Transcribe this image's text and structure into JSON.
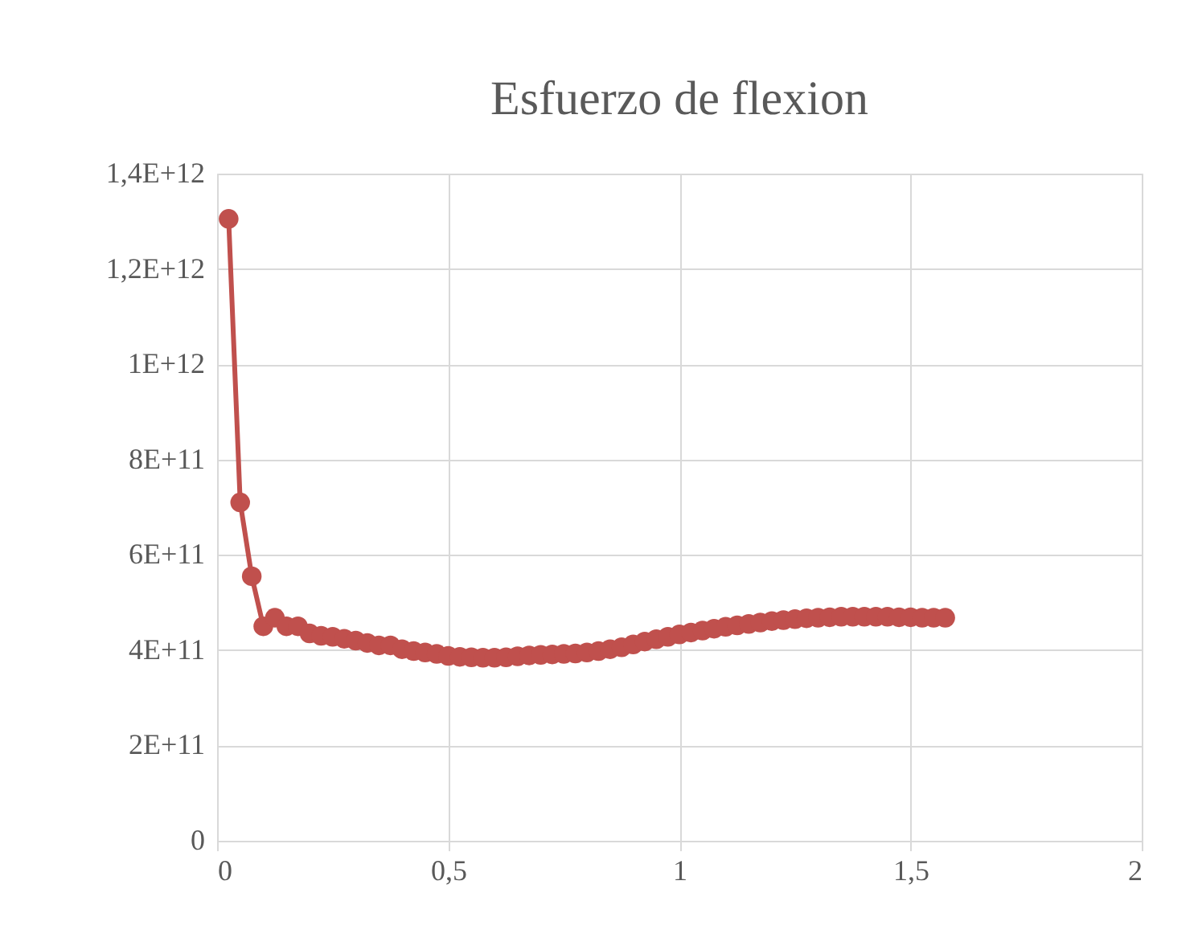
{
  "chart_data": {
    "type": "line",
    "title": "Esfuerzo de flexion",
    "x": [
      0.025,
      0.05,
      0.075,
      0.1,
      0.125,
      0.15,
      0.175,
      0.2,
      0.225,
      0.25,
      0.275,
      0.3,
      0.325,
      0.35,
      0.375,
      0.4,
      0.425,
      0.45,
      0.475,
      0.5,
      0.525,
      0.55,
      0.575,
      0.6,
      0.625,
      0.65,
      0.675,
      0.7,
      0.725,
      0.75,
      0.775,
      0.8,
      0.825,
      0.85,
      0.875,
      0.9,
      0.925,
      0.95,
      0.975,
      1.0,
      1.025,
      1.05,
      1.075,
      1.1,
      1.125,
      1.15,
      1.175,
      1.2,
      1.225,
      1.25,
      1.275,
      1.3,
      1.325,
      1.35,
      1.375,
      1.4,
      1.425,
      1.45,
      1.475,
      1.5,
      1.525,
      1.55,
      1.575
    ],
    "series": [
      {
        "color": "#c0504d",
        "values": [
          1305000000000.0,
          710000000000.0,
          555000000000.0,
          450000000000.0,
          468000000000.0,
          450000000000.0,
          450000000000.0,
          435000000000.0,
          430000000000.0,
          428000000000.0,
          424000000000.0,
          420000000000.0,
          415000000000.0,
          410000000000.0,
          410000000000.0,
          402000000000.0,
          398000000000.0,
          395000000000.0,
          392000000000.0,
          388000000000.0,
          386000000000.0,
          385000000000.0,
          384000000000.0,
          384000000000.0,
          385000000000.0,
          387000000000.0,
          389000000000.0,
          390000000000.0,
          391000000000.0,
          392000000000.0,
          393000000000.0,
          395000000000.0,
          398000000000.0,
          402000000000.0,
          406000000000.0,
          412000000000.0,
          418000000000.0,
          423000000000.0,
          428000000000.0,
          433000000000.0,
          437000000000.0,
          441000000000.0,
          445000000000.0,
          449000000000.0,
          452000000000.0,
          455000000000.0,
          458000000000.0,
          461000000000.0,
          463000000000.0,
          465000000000.0,
          467000000000.0,
          468000000000.0,
          469000000000.0,
          470000000000.0,
          470000000000.0,
          470000000000.0,
          470000000000.0,
          470000000000.0,
          469000000000.0,
          469000000000.0,
          468000000000.0,
          468000000000.0,
          468000000000.0
        ]
      }
    ],
    "xlim": [
      0,
      2
    ],
    "xticks": [
      0,
      {
        "value": 0.5,
        "label": "0,5"
      },
      1,
      {
        "value": 1.5,
        "label": "1,5"
      },
      2
    ],
    "ylim": [
      0,
      1400000000000.0
    ],
    "yticks": [
      0,
      {
        "value": 200000000000.0,
        "label": "2E+11"
      },
      {
        "value": 400000000000.0,
        "label": "4E+11"
      },
      {
        "value": 600000000000.0,
        "label": "6E+11"
      },
      {
        "value": 800000000000.0,
        "label": "8E+11"
      },
      {
        "value": 1000000000000.0,
        "label": "1E+12"
      },
      {
        "value": 1200000000000.0,
        "label": "1,2E+12"
      },
      {
        "value": 1400000000000.0,
        "label": "1,4E+12"
      }
    ],
    "grid": true,
    "marker": "circle",
    "line_style": "solid"
  }
}
